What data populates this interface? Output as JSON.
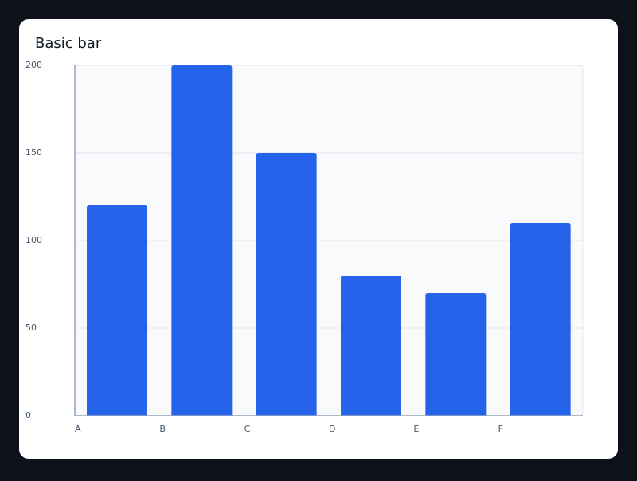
{
  "chart_data": {
    "type": "bar",
    "title": "Basic bar",
    "categories": [
      "A",
      "B",
      "C",
      "D",
      "E",
      "F"
    ],
    "values": [
      120,
      200,
      150,
      80,
      70,
      110
    ],
    "color": "#2563eb",
    "ylim": [
      0,
      200
    ],
    "yticks": [
      0,
      50,
      100,
      150,
      200
    ],
    "grid": true
  }
}
